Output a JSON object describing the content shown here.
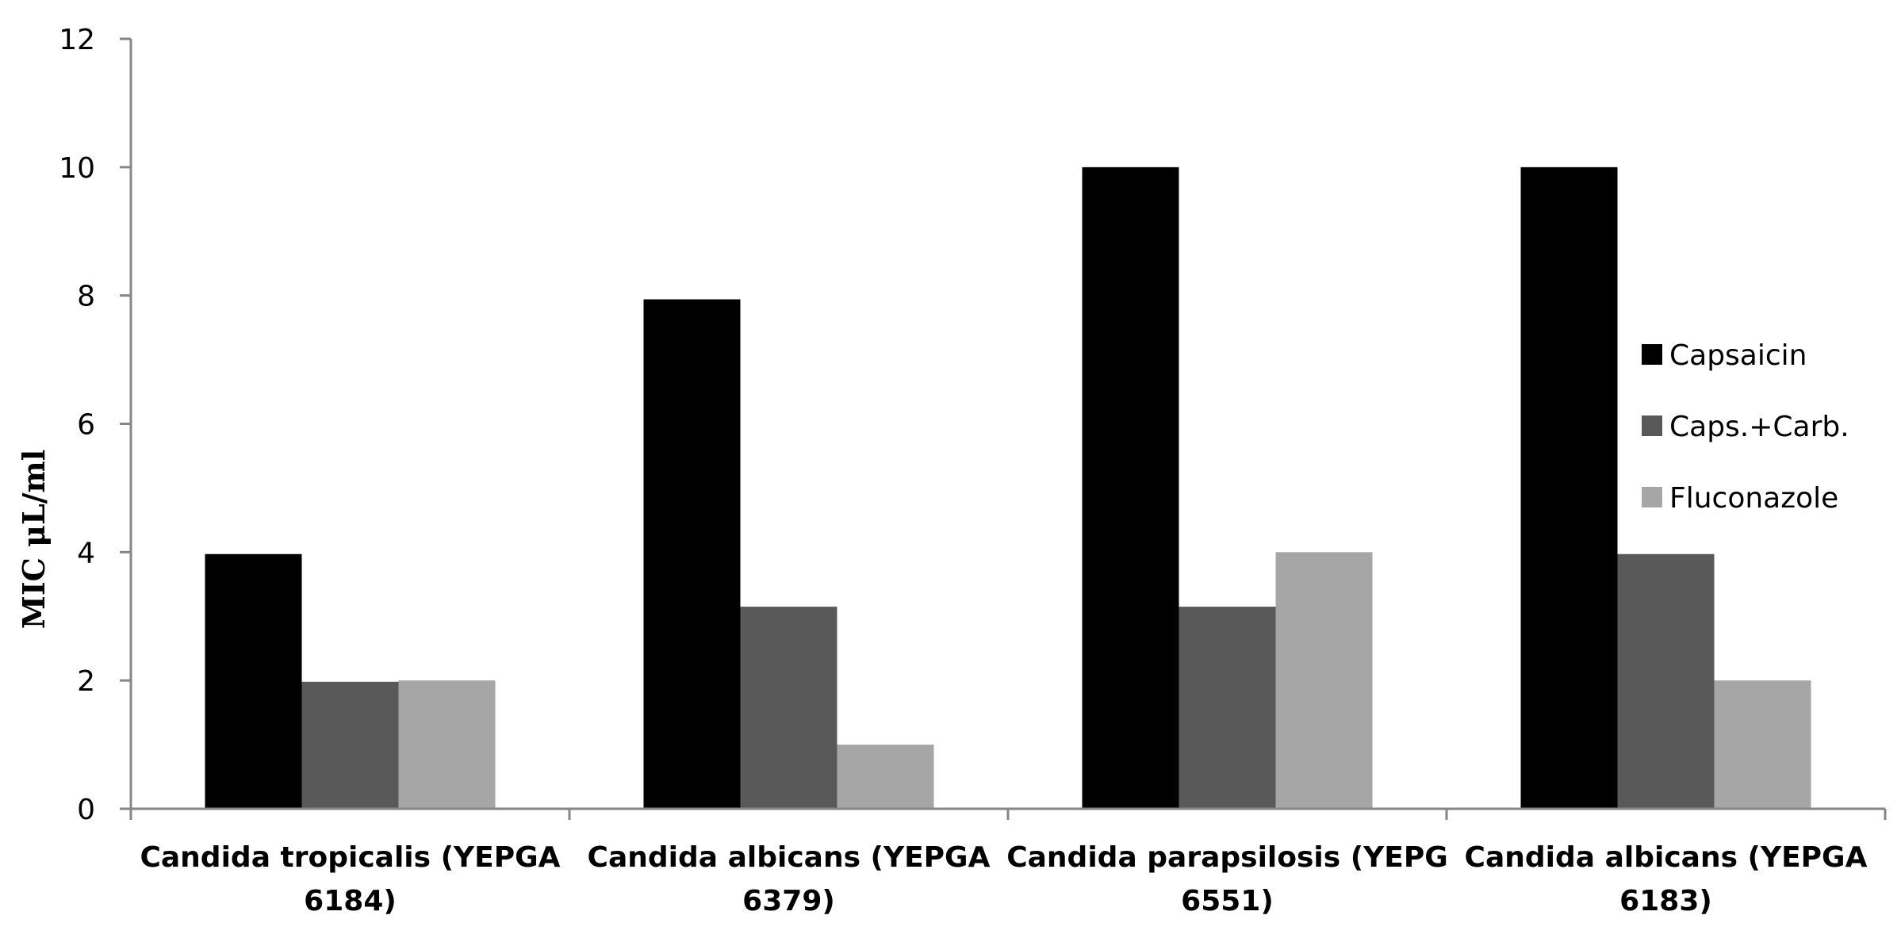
{
  "chart_data": {
    "type": "bar",
    "title": "",
    "xlabel": "",
    "ylabel": "MIC μL/ml",
    "ylim": [
      0,
      12
    ],
    "yticks": [
      0,
      2,
      4,
      6,
      8,
      10,
      12
    ],
    "ytick_labels": [
      "0",
      "2",
      "4",
      "6",
      "8",
      "10",
      "12"
    ],
    "grid": false,
    "legend_position": "right",
    "categories": [
      [
        "Candida tropicalis (YEPGA",
        "6184)"
      ],
      [
        "Candida albicans (YEPGA",
        "6379)"
      ],
      [
        "Candida parapsilosis (YEPG",
        "6551)"
      ],
      [
        "Candida albicans (YEPGA",
        "6183)"
      ]
    ],
    "series": [
      {
        "name": "Capsaicin",
        "color": "#000000",
        "values": [
          3.97,
          7.94,
          10,
          10
        ]
      },
      {
        "name": "Caps.+Carb.",
        "color": "#595959",
        "values": [
          1.98,
          3.15,
          3.15,
          3.97
        ]
      },
      {
        "name": "Fluconazole",
        "color": "#a6a6a6",
        "values": [
          2,
          1,
          4,
          2
        ]
      }
    ]
  }
}
